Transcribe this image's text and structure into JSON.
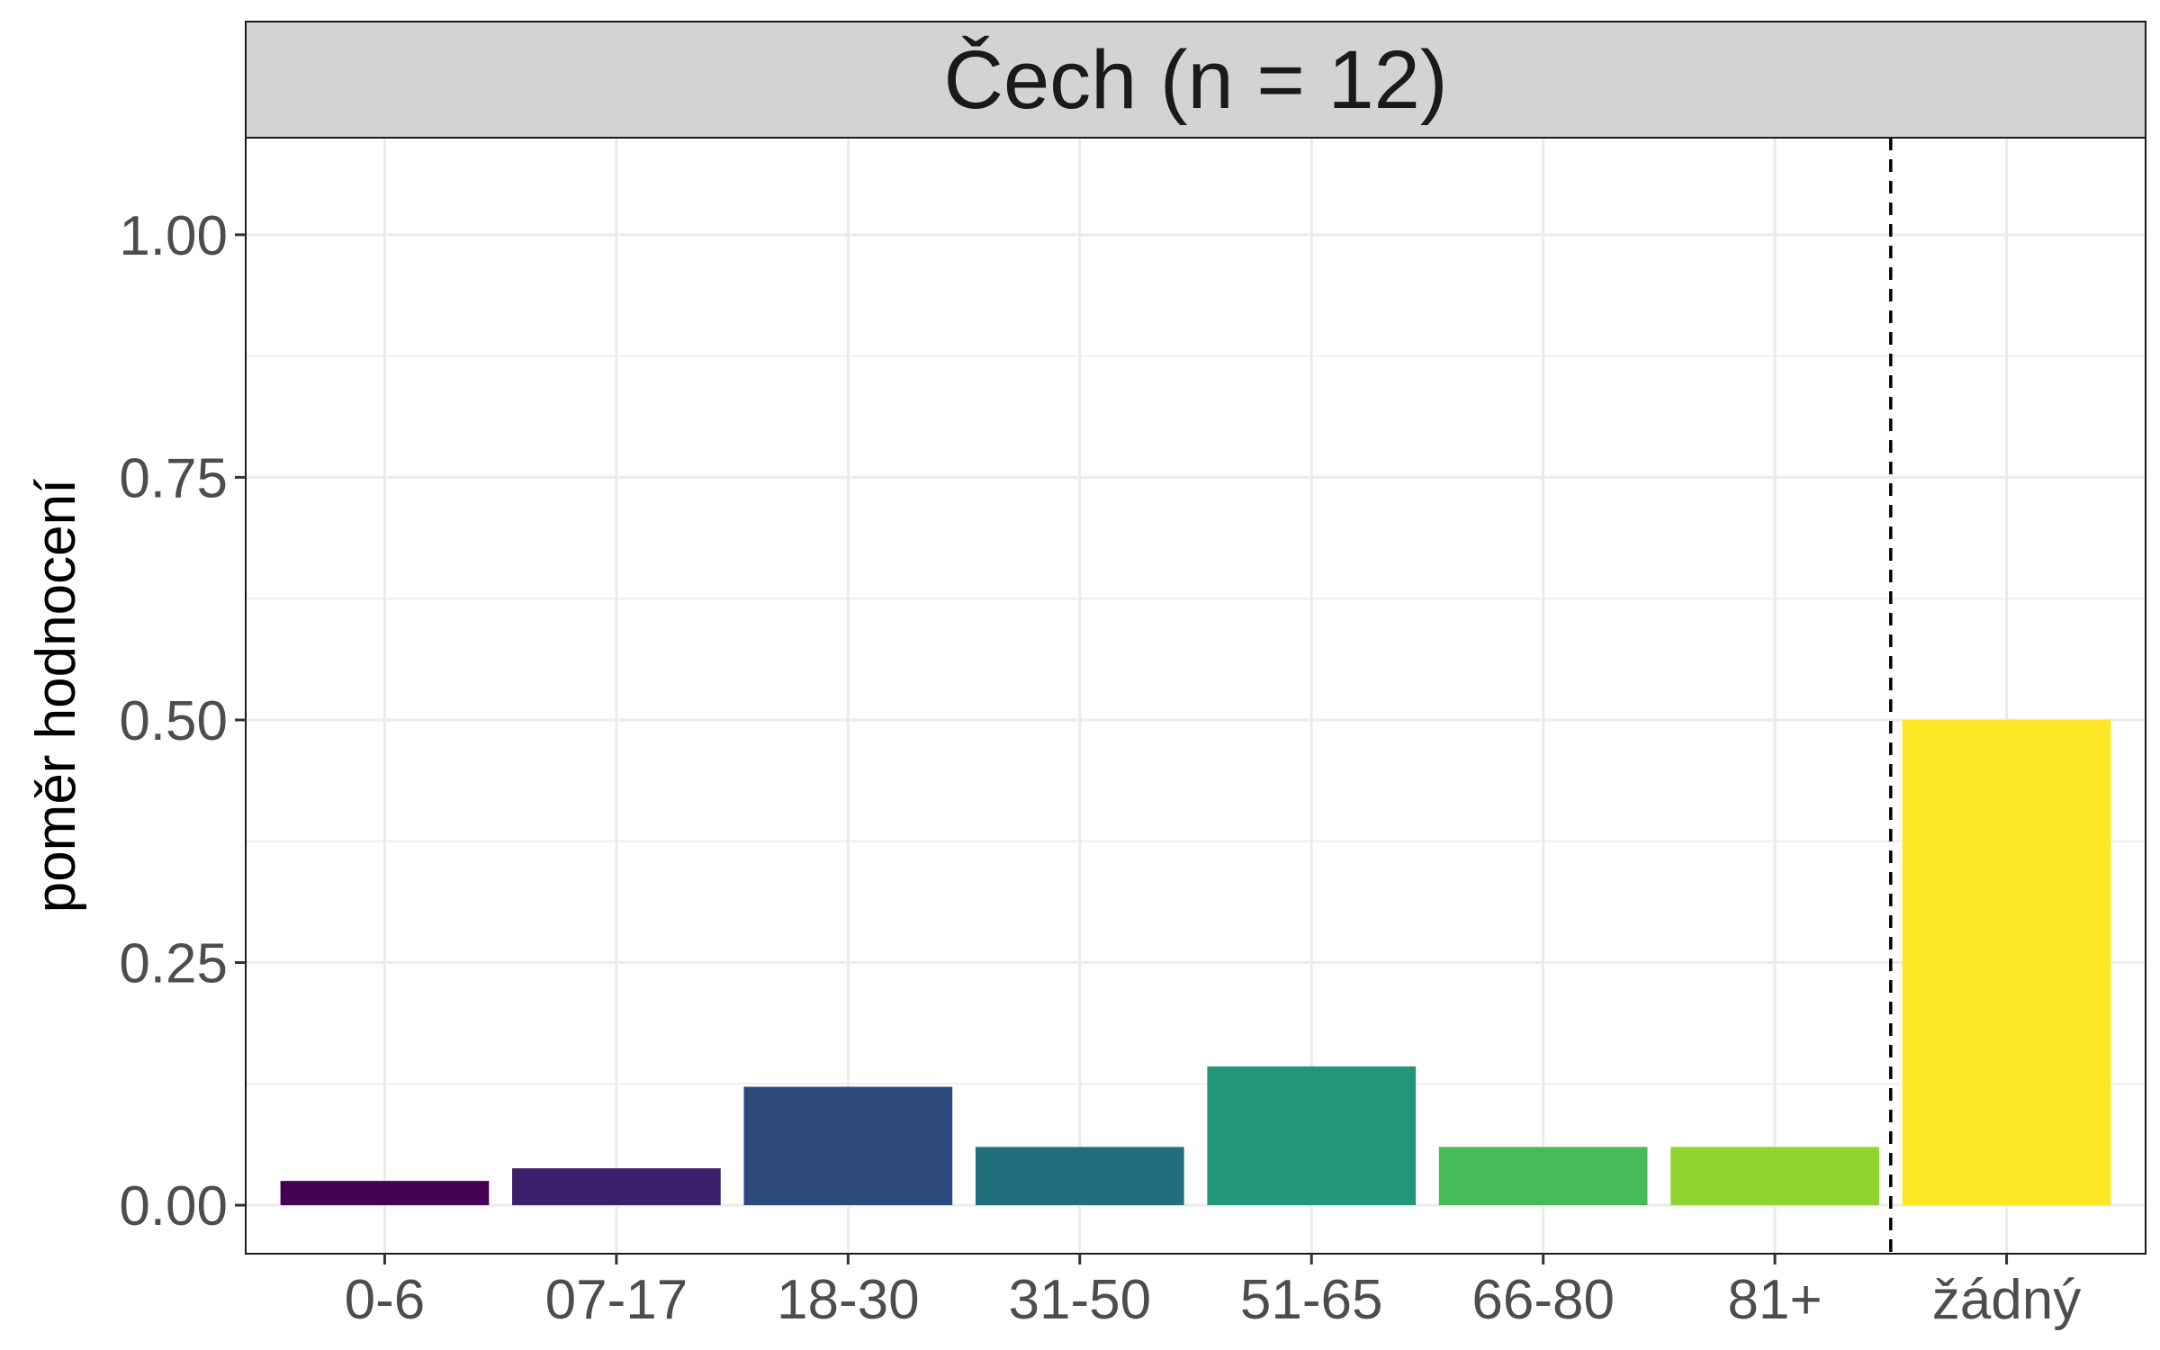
{
  "chart_data": {
    "type": "bar",
    "facet_label": "Čech (n = 12)",
    "ylabel": "poměr hodnocení",
    "xlabel": "",
    "categories": [
      "0-6",
      "07-17",
      "18-30",
      "31-50",
      "51-65",
      "66-80",
      "81+",
      "žádný"
    ],
    "values": [
      0.025,
      0.038,
      0.122,
      0.06,
      0.143,
      0.06,
      0.06,
      0.5
    ],
    "colors": [
      "#440154",
      "#3b1f6a",
      "#2c4a7c",
      "#216e7d",
      "#22967a",
      "#44bb57",
      "#8fd530",
      "#fde725"
    ],
    "ylim": [
      -0.05,
      1.1
    ],
    "yticks": [
      0.0,
      0.25,
      0.5,
      0.75,
      1.0
    ],
    "ytick_labels": [
      "0.00",
      "0.25",
      "0.50",
      "0.75",
      "1.00"
    ],
    "reference_line": {
      "style": "dashed",
      "between_categories": [
        "81+",
        "žádný"
      ]
    },
    "grid": true,
    "legend": "none"
  }
}
